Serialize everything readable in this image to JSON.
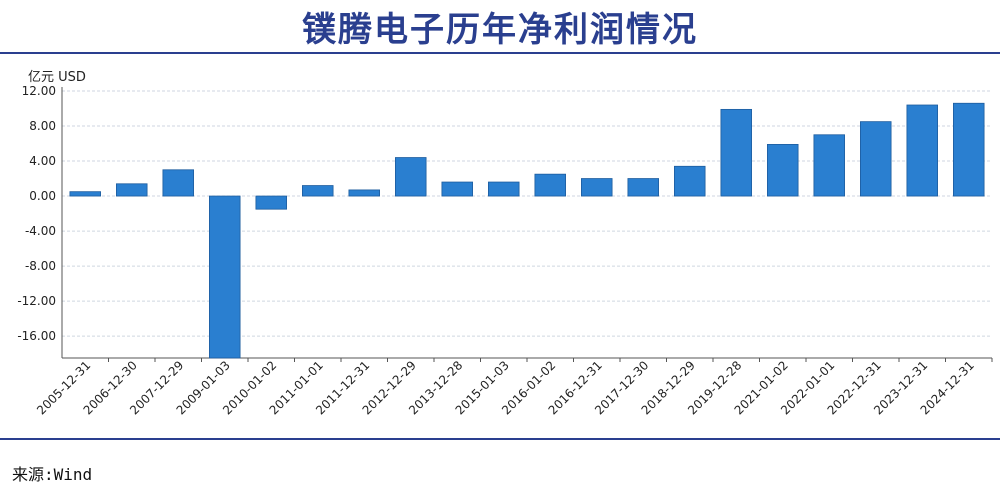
{
  "title": "镤腾电子历年净利润情况",
  "unit_label": "亿元  USD",
  "source": "来源:Wind",
  "colors": {
    "bar": "#2a7fd0",
    "bar_edge": "#1d5c9e",
    "grid": "#cfd6e0",
    "axis": "#555555",
    "title": "#2a3f8f"
  },
  "chart_data": {
    "type": "bar",
    "title": "镤腾电子历年净利润情况",
    "ylabel": "亿元  USD",
    "xlabel": "",
    "ylim": [
      -18.5,
      12
    ],
    "yticks": [
      12,
      8,
      4,
      0,
      -4,
      -8,
      -12,
      -16
    ],
    "ytick_labels": [
      "12.00",
      "8.00",
      "4.00",
      "0.00",
      "-4.00",
      "-8.00",
      "-12.00",
      "-16.00"
    ],
    "grid": true,
    "categories": [
      "2005-12-31",
      "2006-12-30",
      "2007-12-29",
      "2009-01-03",
      "2010-01-02",
      "2011-01-01",
      "2011-12-31",
      "2012-12-29",
      "2013-12-28",
      "2015-01-03",
      "2016-01-02",
      "2016-12-31",
      "2017-12-30",
      "2018-12-29",
      "2019-12-28",
      "2021-01-02",
      "2022-01-01",
      "2022-12-31",
      "2023-12-31",
      "2024-12-31"
    ],
    "values": [
      0.5,
      1.4,
      3.0,
      -18.5,
      -1.5,
      1.2,
      0.7,
      4.4,
      1.6,
      1.6,
      2.5,
      2.0,
      2.0,
      3.4,
      9.9,
      5.9,
      7.0,
      8.5,
      10.4,
      10.6
    ]
  }
}
